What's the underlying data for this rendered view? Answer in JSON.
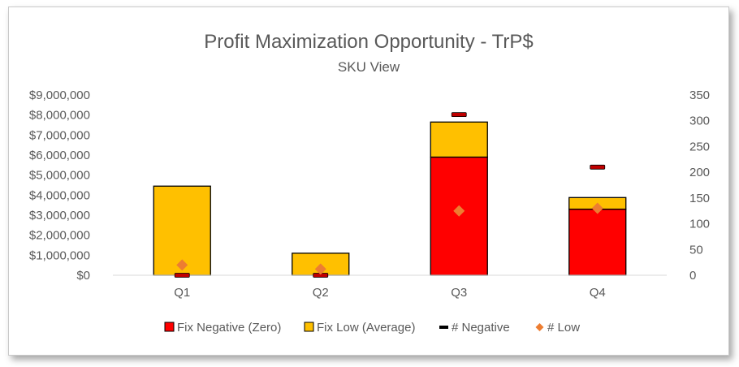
{
  "chart_data": {
    "type": "bar",
    "title": "Profit Maximization Opportunity - TrP$",
    "subtitle": "SKU View",
    "categories": [
      "Q1",
      "Q2",
      "Q3",
      "Q4"
    ],
    "series": [
      {
        "name": "Fix Negative (Zero)",
        "kind": "stacked-bar",
        "axis": "left",
        "color": "#ff0000",
        "values": [
          0,
          0,
          5900000,
          3300000
        ]
      },
      {
        "name": "Fix Low (Average)",
        "kind": "stacked-bar",
        "axis": "left",
        "color": "#ffc000",
        "values": [
          4450000,
          1100000,
          1750000,
          580000
        ]
      },
      {
        "name": "# Negative",
        "kind": "marker-dash",
        "axis": "right",
        "color": "#c00000",
        "values": [
          0,
          0,
          312,
          210
        ]
      },
      {
        "name": "# Low",
        "kind": "marker-diamond",
        "axis": "right",
        "color": "#ed7d31",
        "values": [
          20,
          12,
          125,
          130
        ]
      }
    ],
    "y_left": {
      "min": 0,
      "max": 9000000,
      "step": 1000000,
      "tick_labels": [
        "$0",
        "$1,000,000",
        "$2,000,000",
        "$3,000,000",
        "$4,000,000",
        "$5,000,000",
        "$6,000,000",
        "$7,000,000",
        "$8,000,000",
        "$9,000,000"
      ]
    },
    "y_right": {
      "min": 0,
      "max": 350,
      "step": 50,
      "tick_labels": [
        "0",
        "50",
        "100",
        "150",
        "200",
        "250",
        "300",
        "350"
      ]
    },
    "grid": false,
    "legend": "bottom"
  }
}
